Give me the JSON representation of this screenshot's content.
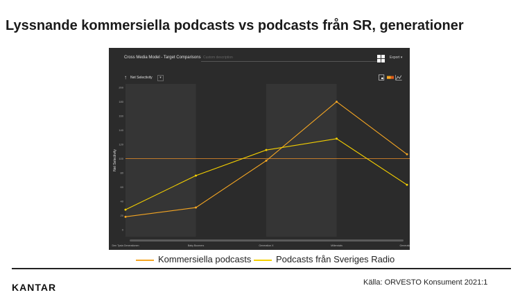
{
  "slide_title": "Lyssnande kommersiella podcasts vs podcasts från SR, generationer",
  "panel": {
    "title": "Cross Media Model - Target Comparisons",
    "description_placeholder": "Custom description",
    "export_label": "Export",
    "metric_label": "Net Selectivity"
  },
  "legend": [
    {
      "name": "Kommersiella podcasts",
      "color": "#f5a623"
    },
    {
      "name": "Podcasts från Sveriges Radio",
      "color": "#f5d000"
    }
  ],
  "source": "Källa: ORVESTO Konsument 2021:1",
  "logo": "KANTAR",
  "colors": {
    "panel_bg": "#2b2b2b",
    "band_light": "#353535",
    "band_dark": "#2b2b2b",
    "reference_line": "#d4842a"
  },
  "chart_data": {
    "type": "line",
    "title": "",
    "xlabel": "",
    "ylabel": "Net Selectivity",
    "categories": [
      "Den Tysta Generationen",
      "Baby Boomers",
      "Generation X",
      "Millennials",
      "Generation Z"
    ],
    "yticks": [
      0,
      20,
      40,
      60,
      80,
      100,
      120,
      140,
      160,
      180,
      200
    ],
    "ylim": [
      -10,
      205
    ],
    "reference_value": 100,
    "series": [
      {
        "name": "Kommersiella podcasts",
        "color": "#f5a623",
        "values": [
          18,
          31,
          97,
          180,
          106
        ]
      },
      {
        "name": "Podcasts från Sveriges Radio",
        "color": "#f5d000",
        "values": [
          28,
          76,
          112,
          128,
          63
        ]
      }
    ]
  }
}
